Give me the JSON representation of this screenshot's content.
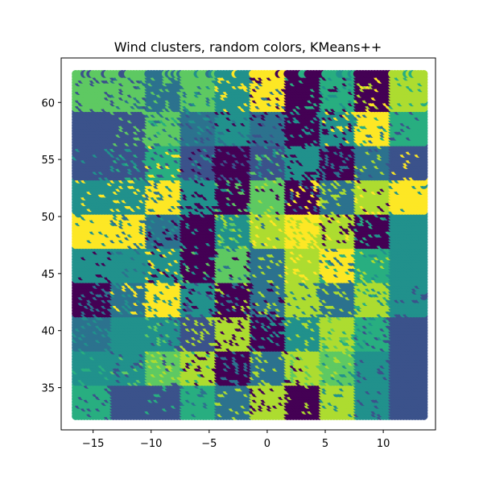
{
  "chart_data": {
    "type": "scatter",
    "title": "Wind clusters, random colors, KMeans++",
    "xlabel": "",
    "ylabel": "",
    "xlim": [
      -17.75,
      14.5
    ],
    "ylim": [
      31.3,
      63.9
    ],
    "x_ticks": [
      -15,
      -10,
      -5,
      0,
      5,
      10
    ],
    "x_tick_labels": [
      "−15",
      "−10",
      "−5",
      "0",
      "5",
      "10"
    ],
    "y_ticks": [
      35,
      40,
      45,
      50,
      55,
      60
    ],
    "y_tick_labels": [
      "35",
      "40",
      "45",
      "50",
      "55",
      "60"
    ],
    "grid": false,
    "legend": "none",
    "palette": [
      "#440154",
      "#3b528b",
      "#2c728e",
      "#21918c",
      "#28ae80",
      "#5ec962",
      "#addc30",
      "#fde725"
    ],
    "grid_x": {
      "start": -16.5,
      "end": 13.5,
      "step": 0.25
    },
    "grid_y": {
      "start": 32.5,
      "end": 62.5,
      "step": 0.25
    },
    "cluster_map": {
      "x_edges": [
        -16.5,
        -13.5,
        -10.5,
        -7.5,
        -4.5,
        -1.5,
        1.5,
        4.5,
        7.5,
        10.5,
        13.5
      ],
      "y_edges": [
        62.5,
        59.5,
        56.5,
        53.5,
        50.5,
        47.5,
        44.5,
        41.5,
        38.5,
        35.5,
        32.5
      ],
      "rows": [
        [
          5,
          5,
          2,
          5,
          3,
          7,
          0,
          4,
          0,
          6
        ],
        [
          1,
          1,
          5,
          2,
          3,
          2,
          0,
          3,
          7,
          4
        ],
        [
          1,
          1,
          4,
          1,
          0,
          1,
          3,
          0,
          2,
          1
        ],
        [
          3,
          3,
          7,
          3,
          0,
          5,
          0,
          2,
          6,
          7
        ],
        [
          7,
          7,
          2,
          0,
          3,
          6,
          7,
          6,
          0,
          3
        ],
        [
          3,
          3,
          3,
          0,
          5,
          2,
          6,
          7,
          4,
          3
        ],
        [
          0,
          2,
          7,
          3,
          0,
          2,
          6,
          2,
          6,
          3
        ],
        [
          2,
          3,
          3,
          1,
          6,
          0,
          3,
          6,
          4,
          1
        ],
        [
          3,
          3,
          5,
          6,
          0,
          2,
          6,
          5,
          3,
          1
        ],
        [
          4,
          1,
          1,
          4,
          2,
          6,
          0,
          6,
          3,
          1
        ]
      ]
    }
  }
}
